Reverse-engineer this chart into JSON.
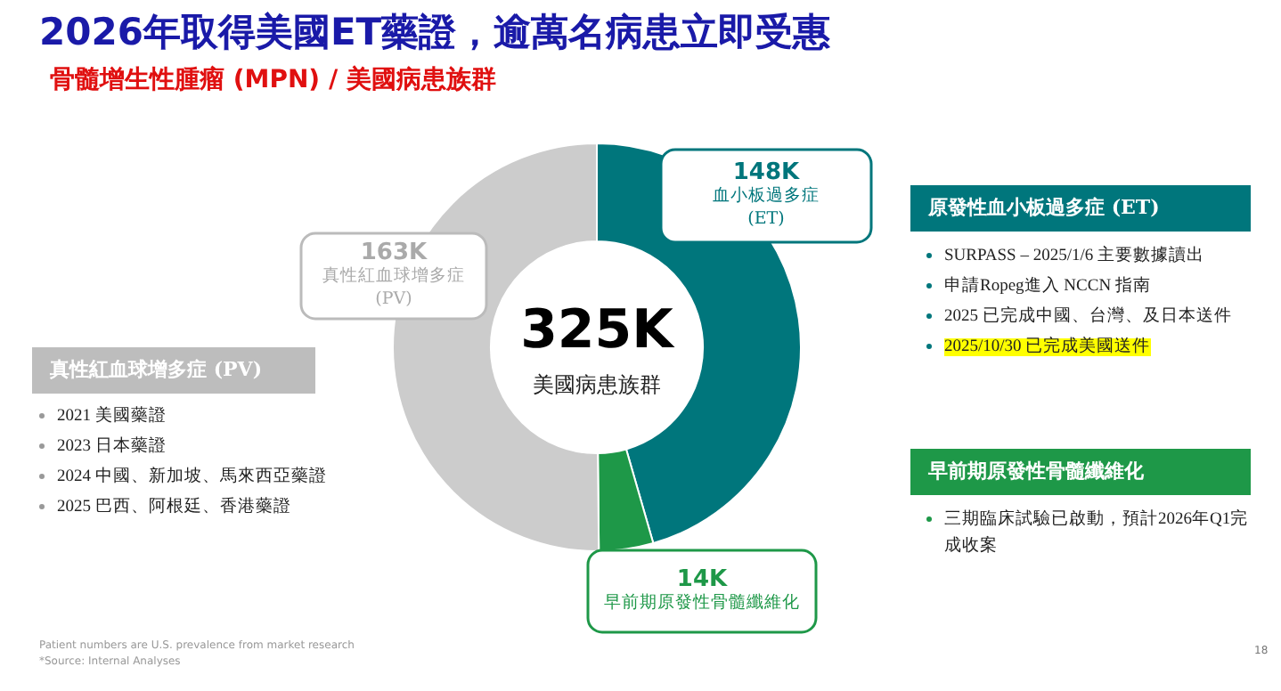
{
  "chart_data": {
    "type": "donut",
    "title": "2026年取得美國ET藥證，逾萬名病患立即受惠",
    "subtitle": "骨髓增生性腫瘤 (MPN) / 美國病患族群",
    "categories": [
      "血小板過多症\n(ET)",
      "早前期原發性骨髓纖維化",
      "真性紅血球增多症\n(PV)"
    ],
    "values": [
      148,
      14,
      163
    ],
    "value_labels": [
      "148K",
      "14K",
      "163K"
    ],
    "colors": [
      "#00767c",
      "#1e9848",
      "#cccccc"
    ],
    "legend": false,
    "annotations": [
      "325K",
      "美國病患族群",
      "真性紅血球增多症 (PV)",
      "2021 美國藥證",
      "2023 日本藥證",
      "2024 中國、新加坡、馬來西亞藥證",
      "2025 巴西、阿根廷、香港藥證",
      "原發性血小板過多症 (ET)",
      "SURPASS – 2025/1/6 主要數據讀出",
      "申請Ropeg進入 NCCN 指南",
      "2025 已完成中國、台灣、及日本送件",
      "2025/10/30 已完成美國送件",
      "早前期原發性骨髓纖維化",
      "三期臨床試驗已啟動，預計2026年Q1完成收案",
      "Patient numbers are U.S. prevalence from market research",
      "*Source: Internal Analyses",
      "18"
    ]
  }
}
